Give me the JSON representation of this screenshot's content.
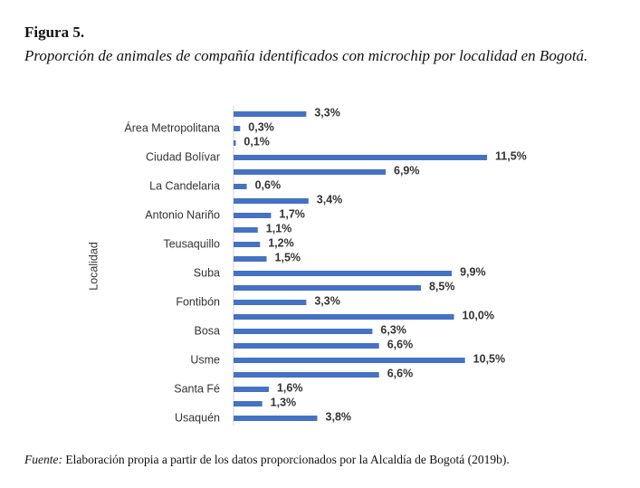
{
  "figure_label": "Figura 5.",
  "subtitle": "Proporción de animales de compañía identificados con microchip por localidad en Bogotá.",
  "source_label": "Fuente:",
  "source_text": "Elaboración propia a partir de los datos proporcionados por la Alcaldía de Bogotá (2019b).",
  "chart_data": {
    "type": "barh",
    "y_label": "Localidad",
    "color": "#4472c4",
    "categories": [
      null,
      "Área Metropolitana",
      null,
      "Ciudad Bolívar",
      null,
      "La Candelaria",
      null,
      "Antonio Nariño",
      null,
      "Teusaquillo",
      null,
      "Suba",
      null,
      "Fontibón",
      null,
      "Bosa",
      null,
      "Usme",
      null,
      "Santa Fé",
      null,
      "Usaquén"
    ],
    "values": [
      3.3,
      0.3,
      0.1,
      11.5,
      6.9,
      0.6,
      3.4,
      1.7,
      1.1,
      1.2,
      1.5,
      9.9,
      8.5,
      3.3,
      10.0,
      6.3,
      6.6,
      10.5,
      6.6,
      1.6,
      1.3,
      3.8
    ],
    "value_labels": [
      "3,3%",
      "0,3%",
      "0,1%",
      "11,5%",
      "6,9%",
      "0,6%",
      "3,4%",
      "1,7%",
      "1,1%",
      "1,2%",
      "1,5%",
      "9,9%",
      "8,5%",
      "3,3%",
      "10,0%",
      "6,3%",
      "6,6%",
      "10,5%",
      "6,6%",
      "1,6%",
      "1,3%",
      "3,8%"
    ]
  }
}
